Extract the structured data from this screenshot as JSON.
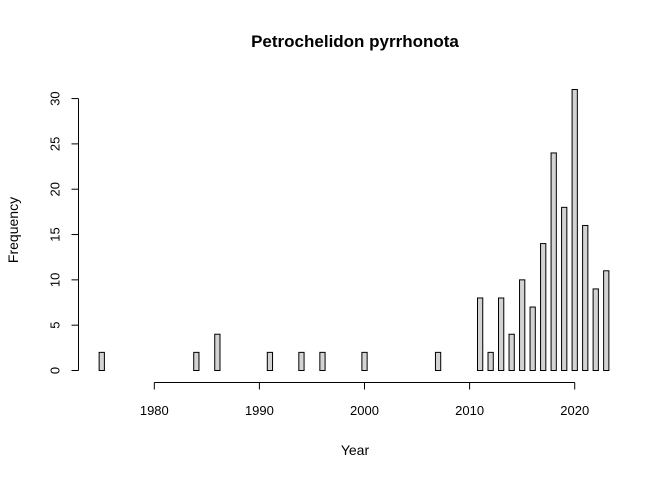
{
  "chart_data": {
    "type": "bar",
    "title": "Petrochelidon pyrrhonota",
    "xlabel": "Year",
    "ylabel": "Frequency",
    "xlim": [
      1975,
      2023
    ],
    "ylim": [
      0,
      31
    ],
    "x_ticks": [
      "1980",
      "1990",
      "2000",
      "2010",
      "2020"
    ],
    "y_ticks": [
      "0",
      "5",
      "10",
      "15",
      "20",
      "25",
      "30"
    ],
    "bar_fill": "#d3d3d3",
    "bar_stroke": "#000000",
    "x": [
      1975,
      1976,
      1977,
      1978,
      1979,
      1980,
      1981,
      1982,
      1983,
      1984,
      1985,
      1986,
      1987,
      1988,
      1989,
      1990,
      1991,
      1992,
      1993,
      1994,
      1995,
      1996,
      1997,
      1998,
      1999,
      2000,
      2001,
      2002,
      2003,
      2004,
      2005,
      2006,
      2007,
      2008,
      2009,
      2010,
      2011,
      2012,
      2013,
      2014,
      2015,
      2016,
      2017,
      2018,
      2019,
      2020,
      2021,
      2022,
      2023
    ],
    "values": [
      2,
      0,
      0,
      0,
      0,
      0,
      0,
      0,
      0,
      2,
      0,
      4,
      0,
      0,
      0,
      0,
      2,
      0,
      0,
      2,
      0,
      2,
      0,
      0,
      0,
      2,
      0,
      0,
      0,
      0,
      0,
      0,
      2,
      0,
      0,
      0,
      8,
      2,
      8,
      4,
      10,
      7,
      14,
      24,
      18,
      31,
      16,
      9,
      11
    ]
  }
}
